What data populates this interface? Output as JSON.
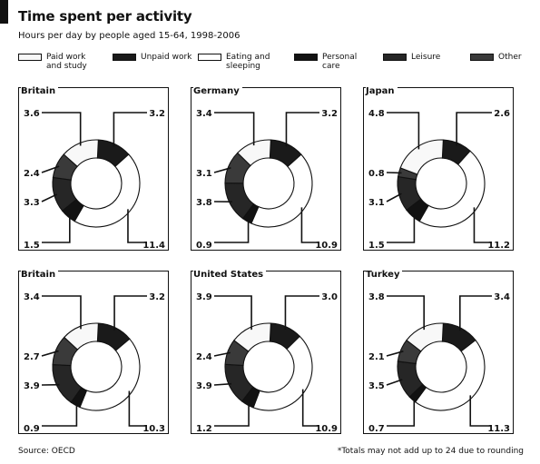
{
  "title": "Time spent per activity",
  "subtitle": "Hours per day by people aged 15-64, 1998-2006",
  "colors": {
    "paid_work": "#f8f8f8",
    "unpaid_work": "#1a1a1a",
    "eating_sleeping": "#ffffff",
    "personal_care": "#121212",
    "leisure": "#262626",
    "other": "#3a3a3a"
  },
  "legend": [
    {
      "key": "paid_work",
      "label": "Paid work and study"
    },
    {
      "key": "unpaid_work",
      "label": "Unpaid work"
    },
    {
      "key": "eating_sleeping",
      "label": "Eating and sleeping"
    },
    {
      "key": "personal_care",
      "label": "Personal care"
    },
    {
      "key": "leisure",
      "label": "Leisure"
    },
    {
      "key": "other",
      "label": "Other"
    }
  ],
  "chart_data": [
    {
      "type": "pie",
      "title": "Britain",
      "categories": [
        "Paid work and study",
        "Unpaid work",
        "Eating and sleeping",
        "Personal care",
        "Leisure",
        "Other"
      ],
      "values": [
        3.6,
        3.2,
        11.4,
        1.5,
        3.3,
        2.4
      ],
      "labels": [
        {
          "text": "3.6",
          "cat": 0
        },
        {
          "text": "3.2",
          "cat": 1
        },
        {
          "text": "11.4",
          "cat": 2
        },
        {
          "text": "1.5",
          "cat": 3
        },
        {
          "text": "3.3",
          "cat": 4
        },
        {
          "text": "2.4",
          "cat": 5
        }
      ]
    },
    {
      "type": "pie",
      "title": "Germany",
      "categories": [
        "Paid work and study",
        "Unpaid work",
        "Eating and sleeping",
        "Personal care",
        "Leisure",
        "Other"
      ],
      "values": [
        3.4,
        3.2,
        10.9,
        0.9,
        3.8,
        3.1
      ],
      "labels": [
        {
          "text": "3.4",
          "cat": 0
        },
        {
          "text": "3.2",
          "cat": 1
        },
        {
          "text": "10.9",
          "cat": 2
        },
        {
          "text": "0.9",
          "cat": 3
        },
        {
          "text": "3.8",
          "cat": 4
        },
        {
          "text": "3.1",
          "cat": 5
        }
      ]
    },
    {
      "type": "pie",
      "title": "Japan",
      "categories": [
        "Paid work and study",
        "Unpaid work",
        "Eating and sleeping",
        "Personal care",
        "Leisure",
        "Other"
      ],
      "values": [
        4.8,
        2.6,
        11.2,
        1.5,
        3.1,
        0.8
      ],
      "labels": [
        {
          "text": "4.8",
          "cat": 0
        },
        {
          "text": "2.6",
          "cat": 1
        },
        {
          "text": "11.2",
          "cat": 2
        },
        {
          "text": "1.5",
          "cat": 3
        },
        {
          "text": "3.1",
          "cat": 4
        },
        {
          "text": "0.8",
          "cat": 5
        }
      ]
    },
    {
      "type": "pie",
      "title": "Britain",
      "categories": [
        "Paid work and study",
        "Unpaid work",
        "Eating and sleeping",
        "Personal care",
        "Leisure",
        "Other"
      ],
      "values": [
        3.4,
        3.2,
        10.3,
        0.9,
        3.9,
        2.7
      ],
      "labels": [
        {
          "text": "3.4",
          "cat": 0
        },
        {
          "text": "3.2",
          "cat": 1
        },
        {
          "text": "10.3",
          "cat": 2
        },
        {
          "text": "0.9",
          "cat": 3
        },
        {
          "text": "3.9",
          "cat": 4
        },
        {
          "text": "2.7",
          "cat": 5
        }
      ]
    },
    {
      "type": "pie",
      "title": "United States",
      "categories": [
        "Paid work and study",
        "Unpaid work",
        "Eating and sleeping",
        "Personal care",
        "Leisure",
        "Other"
      ],
      "values": [
        3.9,
        3.0,
        10.9,
        1.2,
        3.9,
        2.4
      ],
      "labels": [
        {
          "text": "3.9",
          "cat": 0
        },
        {
          "text": "3.0",
          "cat": 1
        },
        {
          "text": "10.9",
          "cat": 2
        },
        {
          "text": "1.2",
          "cat": 3
        },
        {
          "text": "3.9",
          "cat": 4
        },
        {
          "text": "2.4",
          "cat": 5
        }
      ]
    },
    {
      "type": "pie",
      "title": "Turkey",
      "categories": [
        "Paid work and study",
        "Unpaid work",
        "Eating and sleeping",
        "Personal care",
        "Leisure",
        "Other"
      ],
      "values": [
        3.8,
        3.4,
        11.3,
        0.7,
        3.5,
        2.1
      ],
      "labels": [
        {
          "text": "3.8",
          "cat": 0
        },
        {
          "text": "3.4",
          "cat": 1
        },
        {
          "text": "11.3",
          "cat": 2
        },
        {
          "text": "0.7",
          "cat": 3
        },
        {
          "text": "3.5",
          "cat": 4
        },
        {
          "text": "2.1",
          "cat": 5
        }
      ]
    }
  ],
  "source": "Source: OECD",
  "footnote": "*Totals may not add up to 24 due to rounding"
}
